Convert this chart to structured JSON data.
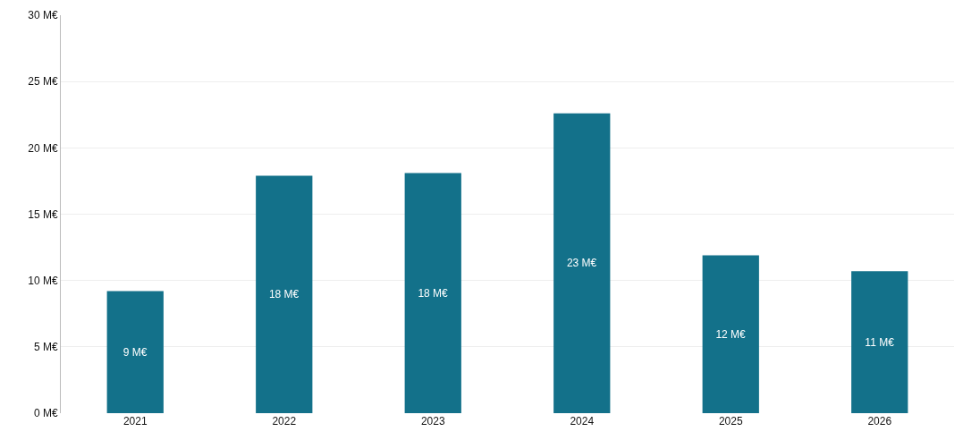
{
  "chart_data": {
    "type": "bar",
    "categories": [
      "2021",
      "2022",
      "2023",
      "2024",
      "2025",
      "2026"
    ],
    "values": [
      9.2,
      17.9,
      18.1,
      22.6,
      11.9,
      10.7
    ],
    "value_labels": [
      "9 M€",
      "18 M€",
      "18 M€",
      "23 M€",
      "12 M€",
      "11 M€"
    ],
    "color": "#13718a",
    "ylim": [
      0,
      30
    ],
    "yticks": [
      {
        "value": 0,
        "label": "0 M€"
      },
      {
        "value": 5,
        "label": "5 M€"
      },
      {
        "value": 10,
        "label": "10 M€"
      },
      {
        "value": 15,
        "label": "15 M€"
      },
      {
        "value": 20,
        "label": "20 M€"
      },
      {
        "value": 25,
        "label": "25 M€"
      },
      {
        "value": 30,
        "label": "30 M€"
      }
    ],
    "grid": "y"
  }
}
